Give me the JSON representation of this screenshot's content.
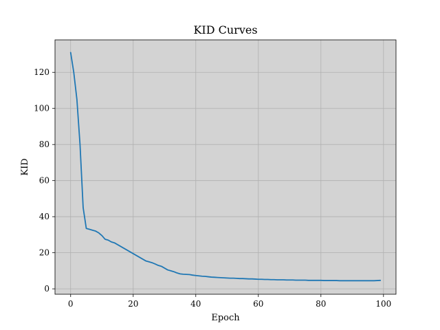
{
  "chart_data": {
    "type": "line",
    "title": "KID Curves",
    "xlabel": "Epoch",
    "ylabel": "KID",
    "xlim": [
      -5,
      104
    ],
    "ylim": [
      -3,
      138
    ],
    "xticks": [
      0,
      20,
      40,
      60,
      80,
      100
    ],
    "yticks": [
      0,
      20,
      40,
      60,
      80,
      100,
      120
    ],
    "grid": true,
    "legend": "none",
    "background_color": "#d3d3d3",
    "series": [
      {
        "color": "#1f77b4",
        "x": [
          0,
          1,
          2,
          3,
          4,
          5,
          6,
          7,
          8,
          9,
          10,
          11,
          12,
          13,
          14,
          15,
          16,
          17,
          18,
          19,
          20,
          21,
          22,
          23,
          24,
          25,
          26,
          27,
          28,
          29,
          30,
          31,
          32,
          33,
          34,
          35,
          36,
          37,
          38,
          39,
          40,
          41,
          42,
          43,
          44,
          45,
          46,
          47,
          48,
          49,
          50,
          51,
          52,
          53,
          54,
          55,
          56,
          57,
          58,
          59,
          60,
          61,
          62,
          63,
          64,
          65,
          66,
          67,
          68,
          69,
          70,
          71,
          72,
          73,
          74,
          75,
          76,
          77,
          78,
          79,
          80,
          81,
          82,
          83,
          84,
          85,
          86,
          87,
          88,
          89,
          90,
          91,
          92,
          93,
          94,
          95,
          96,
          97,
          98,
          99
        ],
        "values": [
          131,
          120,
          105,
          80,
          45,
          33.5,
          33,
          32.5,
          32,
          31,
          29.5,
          27.5,
          27,
          26,
          25.5,
          24.5,
          23.5,
          22.5,
          21.5,
          20.5,
          19.5,
          18.5,
          17.5,
          16.5,
          15.5,
          15,
          14.5,
          13.8,
          13,
          12.5,
          11.5,
          10.5,
          10,
          9.5,
          8.8,
          8.3,
          8.1,
          8,
          7.9,
          7.6,
          7.4,
          7.2,
          7,
          6.9,
          6.7,
          6.5,
          6.4,
          6.3,
          6.2,
          6.1,
          6,
          5.9,
          5.9,
          5.8,
          5.7,
          5.7,
          5.6,
          5.5,
          5.5,
          5.4,
          5.3,
          5.3,
          5.2,
          5.2,
          5.1,
          5.1,
          5,
          5,
          5,
          4.9,
          4.9,
          4.9,
          4.8,
          4.8,
          4.8,
          4.8,
          4.7,
          4.7,
          4.7,
          4.7,
          4.7,
          4.6,
          4.6,
          4.6,
          4.6,
          4.6,
          4.5,
          4.5,
          4.5,
          4.5,
          4.5,
          4.5,
          4.5,
          4.5,
          4.5,
          4.5,
          4.5,
          4.5,
          4.6,
          4.7
        ]
      }
    ]
  }
}
